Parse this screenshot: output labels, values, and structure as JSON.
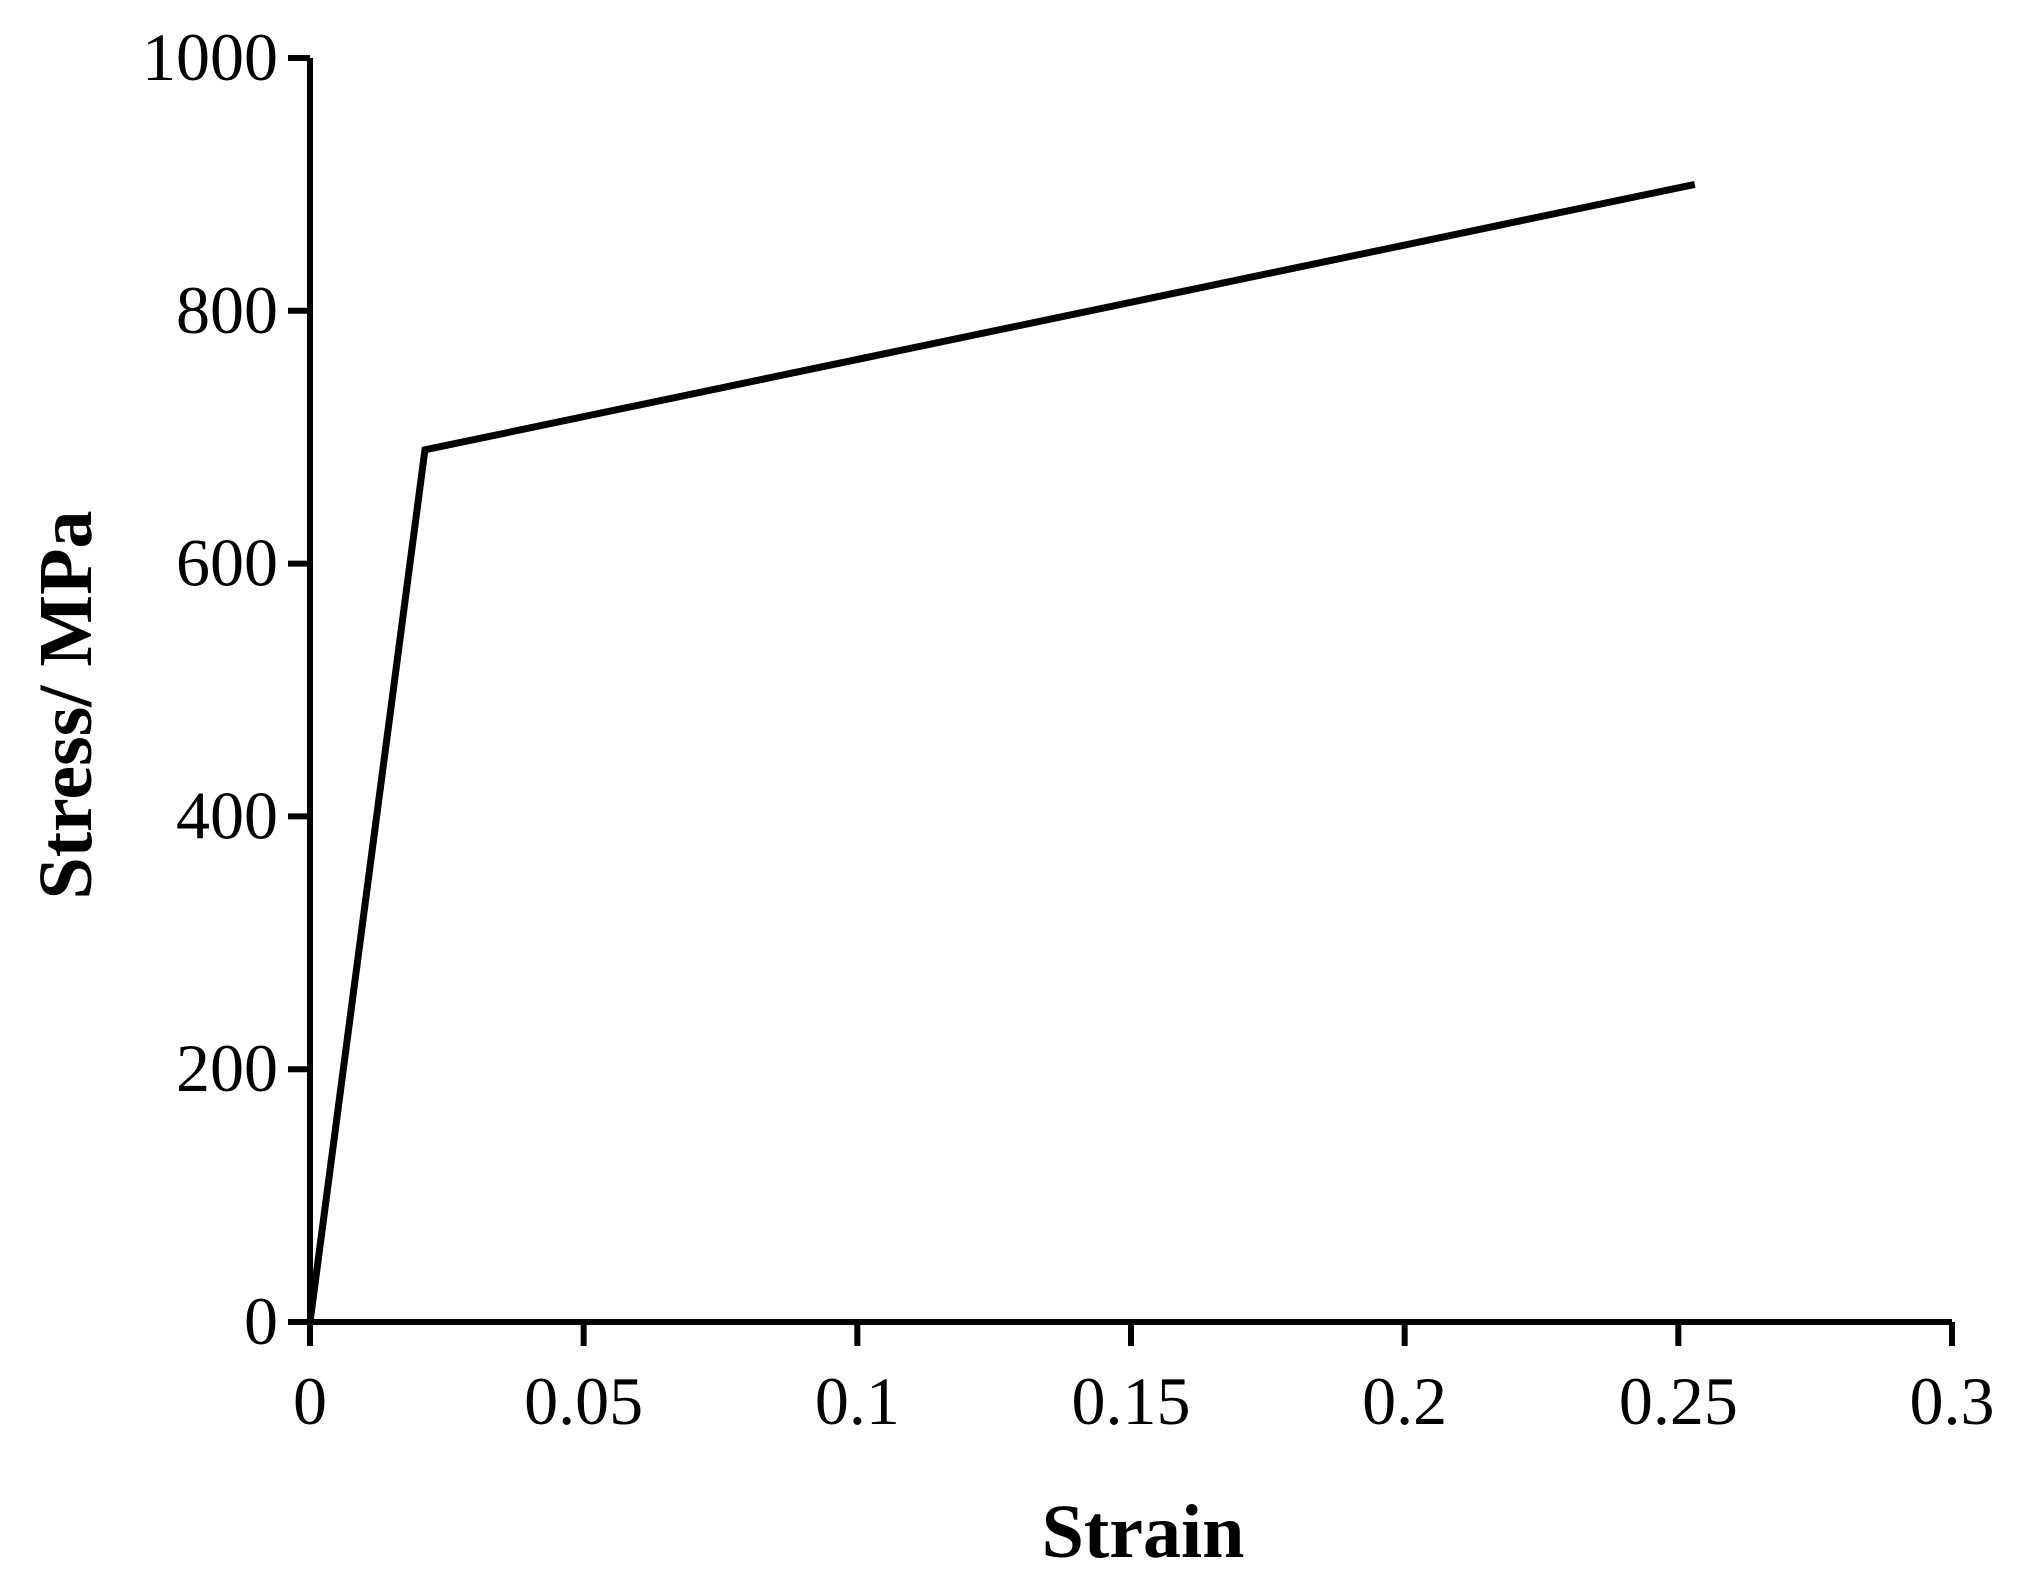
{
  "chart_data": {
    "type": "line",
    "title": "",
    "xlabel": "Strain",
    "ylabel": "Stress/ MPa",
    "xlim": [
      0,
      0.3
    ],
    "ylim": [
      0,
      1000
    ],
    "x_ticks": [
      0,
      0.05,
      0.1,
      0.15,
      0.2,
      0.25,
      0.3
    ],
    "x_tick_labels": [
      "0",
      "0.05",
      "0.1",
      "0.15",
      "0.2",
      "0.25",
      "0.3"
    ],
    "y_ticks": [
      0,
      200,
      400,
      600,
      800,
      1000
    ],
    "y_tick_labels": [
      "0",
      "200",
      "400",
      "600",
      "800",
      "1000"
    ],
    "grid": false,
    "legend": "none",
    "series": [
      {
        "color": "#000000",
        "points": [
          {
            "x": 0,
            "y": 0
          },
          {
            "x": 0.021,
            "y": 690
          },
          {
            "x": 0.253,
            "y": 900
          }
        ]
      }
    ]
  }
}
